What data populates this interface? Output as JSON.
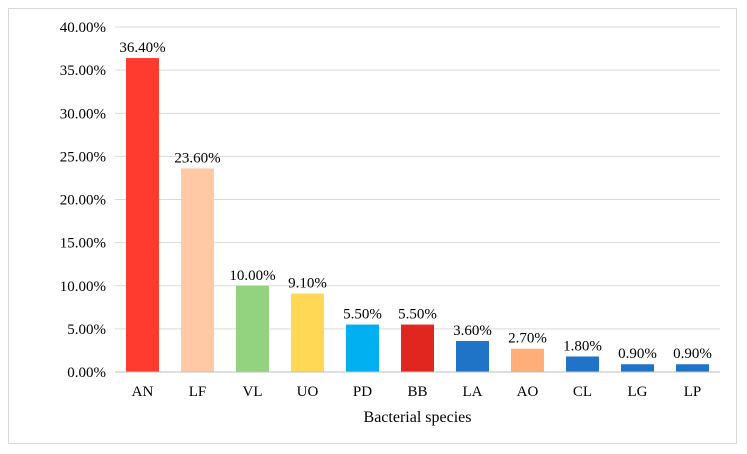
{
  "chart_data": {
    "type": "bar",
    "title": "",
    "xlabel": "Bacterial species",
    "ylabel": "",
    "categories": [
      "AN",
      "LF",
      "VL",
      "UO",
      "PD",
      "BB",
      "LA",
      "AO",
      "CL",
      "LG",
      "LP"
    ],
    "values": [
      36.4,
      23.6,
      10.0,
      9.1,
      5.5,
      5.5,
      3.6,
      2.7,
      1.8,
      0.9,
      0.9
    ],
    "data_labels": [
      "36.40%",
      "23.60%",
      "10.00%",
      "9.10%",
      "5.50%",
      "5.50%",
      "3.60%",
      "2.70%",
      "1.80%",
      "0.90%",
      "0.90%"
    ],
    "bar_colors": [
      "#ff3b30",
      "#ffc9a6",
      "#93d37f",
      "#ffd856",
      "#00b0f0",
      "#e0261f",
      "#1f74c8",
      "#ffae7a",
      "#1f74c8",
      "#1f74c8",
      "#1f74c8"
    ],
    "ylim": [
      0,
      40
    ],
    "yticks": [
      0,
      5,
      10,
      15,
      20,
      25,
      30,
      35,
      40
    ],
    "ytick_labels": [
      "0.00%",
      "5.00%",
      "10.00%",
      "15.00%",
      "20.00%",
      "25.00%",
      "30.00%",
      "35.00%",
      "40.00%"
    ],
    "grid": true,
    "gridline_color": "#d9d9d9",
    "legend": "none"
  }
}
